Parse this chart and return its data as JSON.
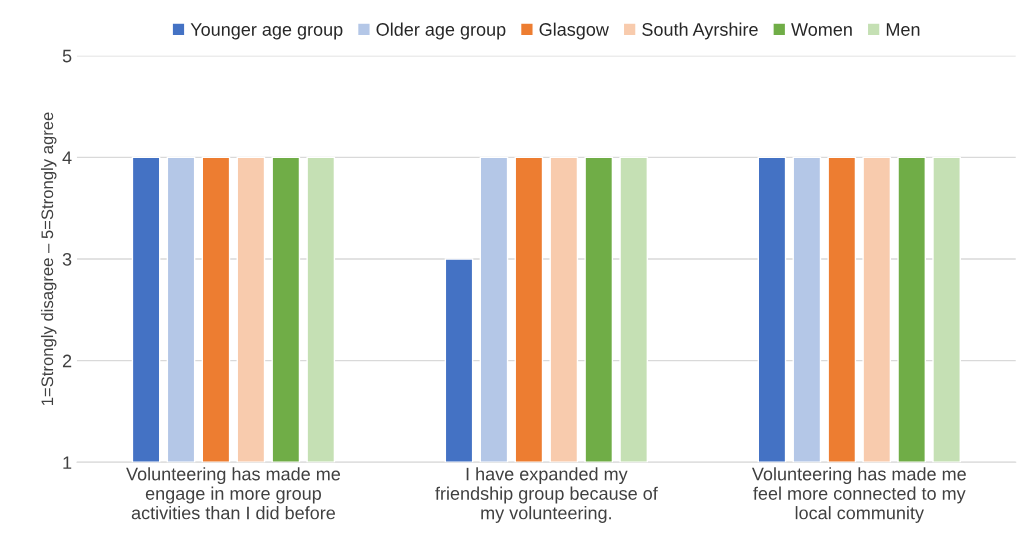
{
  "chart_data": {
    "type": "bar",
    "ylabel": "1=Strongly disagree – 5=Strongly agree",
    "categories": [
      "Volunteering has made me\nengage in more group\nactivities than I did before",
      "I have expanded my\nfriendship group because of\nmy volunteering.",
      "Volunteering has made me\nfeel more connected to my\nlocal community"
    ],
    "series": [
      {
        "name": "Younger age group",
        "color": "#4472c4",
        "values": [
          4,
          3,
          4
        ]
      },
      {
        "name": "Older age group",
        "color": "#b4c7e7",
        "values": [
          4,
          4,
          4
        ]
      },
      {
        "name": "Glasgow",
        "color": "#ed7d31",
        "values": [
          4,
          4,
          4
        ]
      },
      {
        "name": "South Ayrshire",
        "color": "#f8cbad",
        "values": [
          4,
          4,
          4
        ]
      },
      {
        "name": "Women",
        "color": "#70ad47",
        "values": [
          4,
          4,
          4
        ]
      },
      {
        "name": "Men",
        "color": "#c5e0b4",
        "values": [
          4,
          4,
          4
        ]
      }
    ],
    "ylim": [
      1,
      5
    ],
    "yticks": [
      1,
      2,
      3,
      4,
      5
    ],
    "grid": "y",
    "legend": "top"
  }
}
